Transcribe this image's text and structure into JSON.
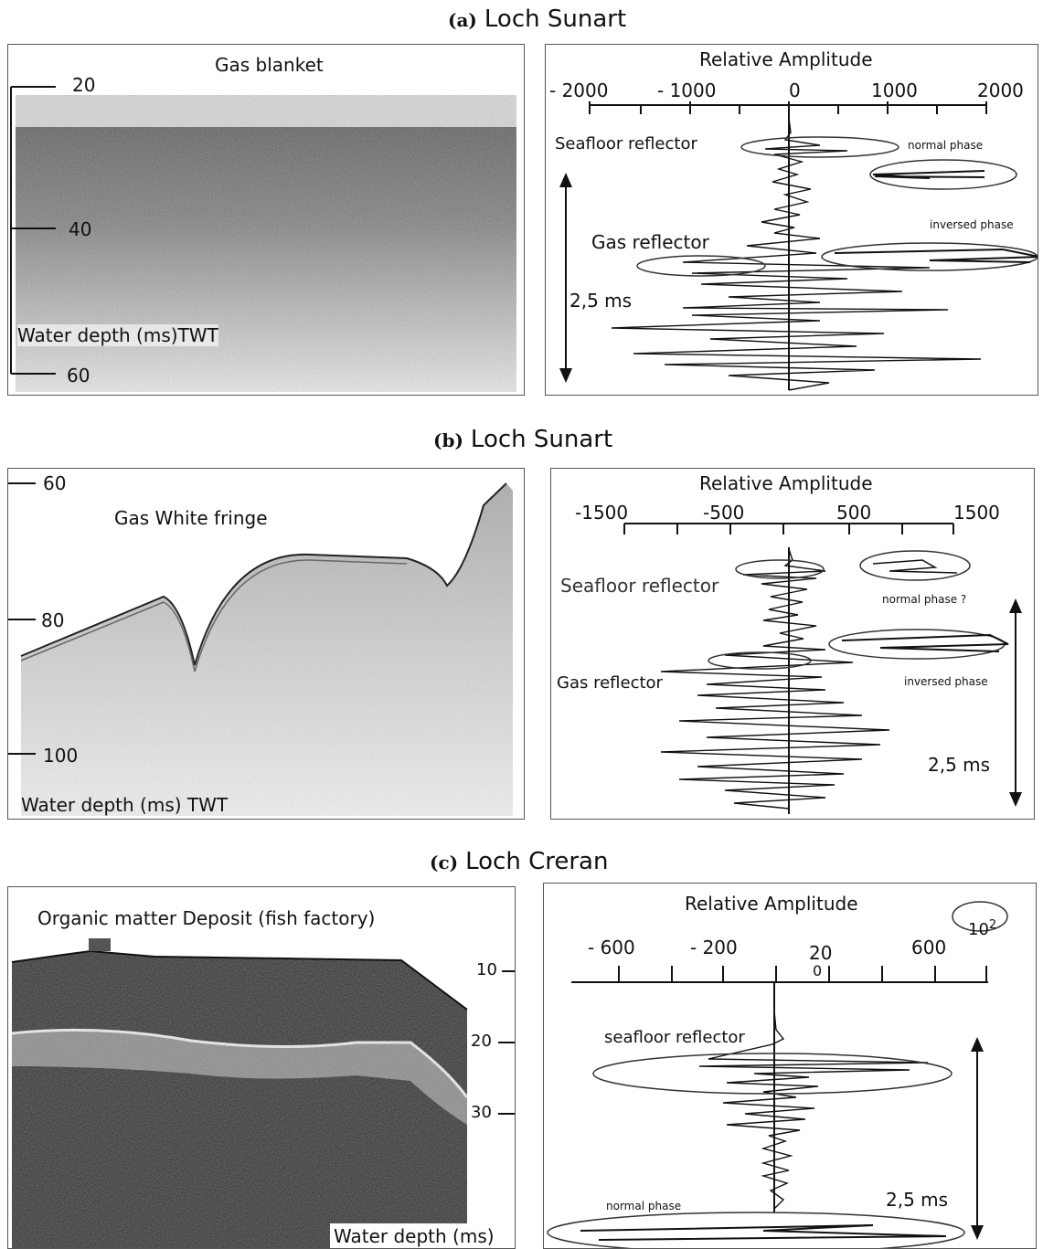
{
  "panels": [
    {
      "letter": "(a)",
      "location": "Loch Sunart",
      "profile": {
        "feature": "Gas blanket",
        "depth_label": "Water depth (ms)TWT",
        "depth_ticks": [
          "20",
          "40",
          "60"
        ]
      },
      "amplitude": {
        "title": "Relative Amplitude",
        "ticks": [
          "- 2000",
          "- 1000",
          "0",
          "1000",
          "2000"
        ],
        "seafloor_label": "Seafloor reflector",
        "gas_label": "Gas reflector",
        "normal_label": "normal phase",
        "inversed_label": "inversed phase",
        "time_label": "2,5 ms"
      }
    },
    {
      "letter": "(b)",
      "location": "Loch Sunart",
      "profile": {
        "feature": "Gas White fringe",
        "depth_label": "Water depth (ms) TWT",
        "depth_ticks": [
          "60",
          "80",
          "100"
        ]
      },
      "amplitude": {
        "title": "Relative Amplitude",
        "ticks": [
          "-1500",
          "-500",
          "500",
          "1500"
        ],
        "seafloor_label": "Seafloor reflector",
        "gas_label": "Gas reflector",
        "normal_label": "normal phase ?",
        "inversed_label": "inversed phase",
        "time_label": "2,5 ms"
      }
    },
    {
      "letter": "(c)",
      "location": "Loch Creran",
      "profile": {
        "feature": "Organic matter Deposit (fish factory)",
        "depth_label": "Water depth (ms)",
        "depth_ticks": [
          "10",
          "20",
          "30"
        ]
      },
      "amplitude": {
        "title": "Relative Amplitude",
        "ticks": [
          "- 600",
          "- 200",
          "20",
          "0",
          "600"
        ],
        "scale_label": "10",
        "scale_exp": "2",
        "seafloor_label": "seafloor reflector",
        "normal_label": "normal phase",
        "time_label": "2,5 ms"
      }
    }
  ],
  "colors": {
    "ink": "#111111",
    "frame": "#555555",
    "sediment": "#2a2a2a"
  }
}
